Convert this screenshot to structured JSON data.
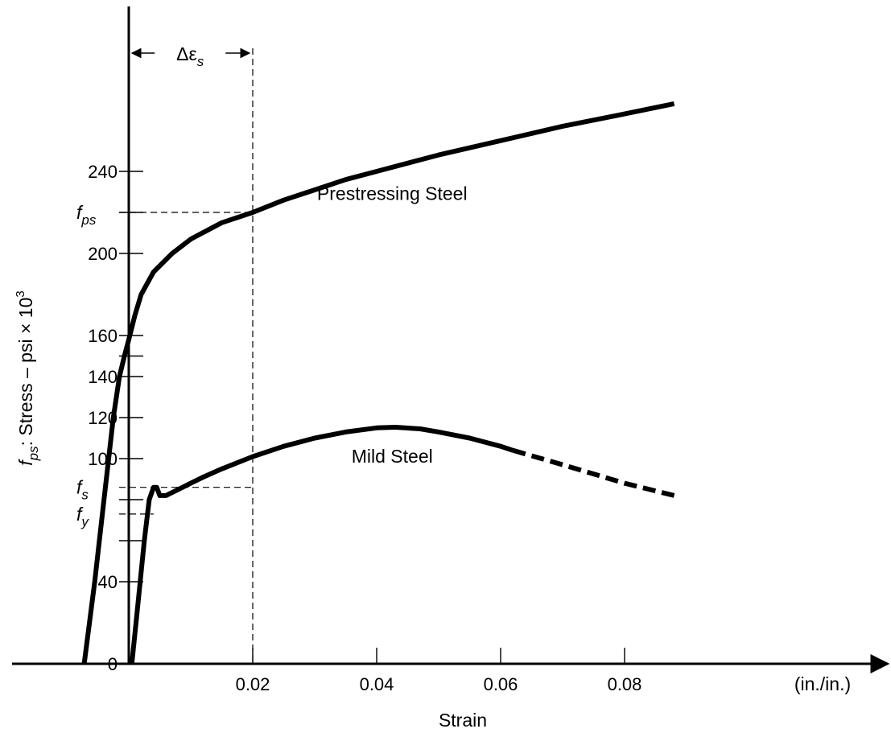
{
  "chart_data": {
    "type": "line",
    "title": "",
    "xlabel": "Strain",
    "x_unit": "(in./in.)",
    "ylabel": "f_ps: Stress – psi × 10^3",
    "ylabel_parts": {
      "sym": "f",
      "sub": "ps",
      "text": ": Stress – psi × 10",
      "sup": "3"
    },
    "xlim": [
      0,
      0.09
    ],
    "ylim": [
      0,
      280
    ],
    "x_ticks": [
      0.02,
      0.04,
      0.06,
      0.08
    ],
    "x_tick_labels": [
      "0.02",
      "0.04",
      "0.06",
      "0.08"
    ],
    "y_ticks": [
      0,
      40,
      100,
      120,
      140,
      160,
      200,
      240
    ],
    "y_tick_labels": [
      "0",
      "40",
      "100",
      "120",
      "140",
      "160",
      "200",
      "240"
    ],
    "y_minor_ticks": [
      60,
      80,
      150,
      220
    ],
    "grid": false,
    "legend": "none",
    "series": [
      {
        "name": "Prestressing Steel",
        "style": "solid",
        "points": [
          [
            -0.0072,
            0
          ],
          [
            -0.0055,
            40
          ],
          [
            -0.004,
            80
          ],
          [
            -0.0025,
            120
          ],
          [
            -0.0015,
            140
          ],
          [
            -0.0007,
            150
          ],
          [
            0.0,
            158
          ],
          [
            0.001,
            170
          ],
          [
            0.002,
            180
          ],
          [
            0.004,
            191
          ],
          [
            0.007,
            200
          ],
          [
            0.01,
            207
          ],
          [
            0.015,
            215
          ],
          [
            0.02,
            220
          ],
          [
            0.025,
            226
          ],
          [
            0.03,
            231
          ],
          [
            0.035,
            236
          ],
          [
            0.04,
            240
          ],
          [
            0.05,
            248
          ],
          [
            0.06,
            255
          ],
          [
            0.07,
            262
          ],
          [
            0.08,
            268
          ],
          [
            0.088,
            273
          ]
        ]
      },
      {
        "name": "Mild Steel",
        "style": "solid",
        "points": [
          [
            0.0005,
            0
          ],
          [
            0.0015,
            30
          ],
          [
            0.0025,
            60
          ],
          [
            0.0033,
            80
          ],
          [
            0.004,
            86
          ],
          [
            0.0045,
            86
          ],
          [
            0.005,
            82
          ],
          [
            0.006,
            82
          ],
          [
            0.008,
            85
          ],
          [
            0.01,
            88
          ],
          [
            0.012,
            91
          ],
          [
            0.015,
            95
          ],
          [
            0.02,
            101
          ],
          [
            0.025,
            106
          ],
          [
            0.03,
            110
          ],
          [
            0.035,
            113
          ],
          [
            0.04,
            115
          ],
          [
            0.043,
            115.3
          ],
          [
            0.047,
            114.5
          ],
          [
            0.05,
            113
          ],
          [
            0.055,
            110
          ],
          [
            0.06,
            106
          ],
          [
            0.062,
            104
          ]
        ]
      },
      {
        "name": "",
        "style": "dashed",
        "points": [
          [
            0.062,
            104
          ],
          [
            0.07,
            97
          ],
          [
            0.08,
            88
          ],
          [
            0.088,
            82
          ]
        ]
      }
    ],
    "reference_lines": [
      {
        "kind": "vertical",
        "x": 0.02,
        "y_from": 0,
        "y_to": 300
      },
      {
        "kind": "horizontal",
        "y": 220,
        "x_from": 0,
        "x_to": 0.02
      },
      {
        "kind": "horizontal",
        "y": 86,
        "x_from": 0,
        "x_to": 0.02
      },
      {
        "kind": "horizontal",
        "y": 73,
        "x_from": 0,
        "x_to": 0.004
      }
    ],
    "annotations": [
      {
        "text": "Prestressing Steel",
        "x": 0.0425,
        "y": 226
      },
      {
        "text": "Mild Steel",
        "x": 0.0425,
        "y": 98
      },
      {
        "sym": "Δε",
        "sub": "s",
        "x": 0.0099,
        "y": 290
      },
      {
        "sym": "f",
        "sub": "ps",
        "x": -0.0095,
        "y": 220
      },
      {
        "sym": "f",
        "sub": "s",
        "x": -0.0095,
        "y": 86
      },
      {
        "sym": "f",
        "sub": "y",
        "x": -0.0095,
        "y": 73
      }
    ]
  }
}
